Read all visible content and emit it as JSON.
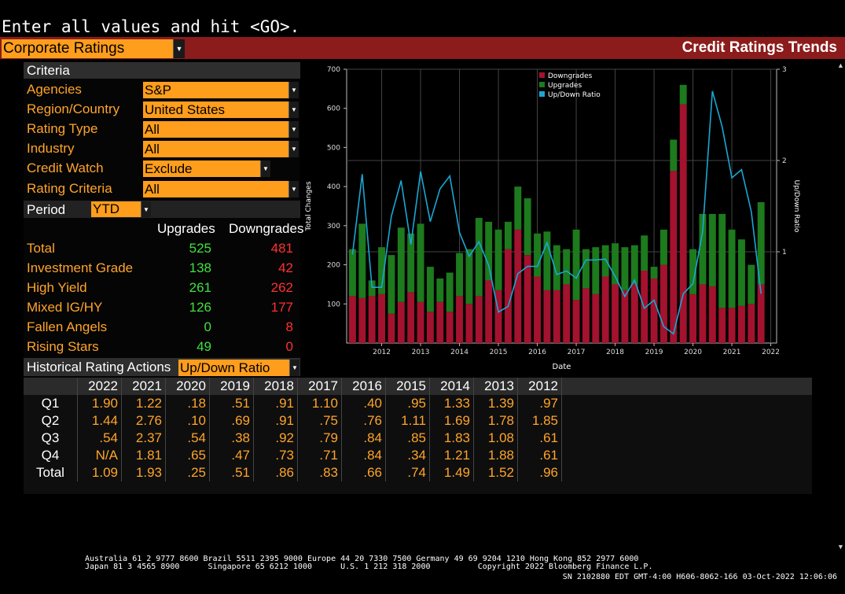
{
  "command_line": "Enter all values and hit <GO>.",
  "screen_selector": "Corporate Ratings",
  "screen_title": "Credit Ratings Trends",
  "criteria": {
    "header": "Criteria",
    "rows": [
      {
        "label": "Agencies",
        "value": "S&P"
      },
      {
        "label": "Region/Country",
        "value": "United States"
      },
      {
        "label": "Rating Type",
        "value": "All"
      },
      {
        "label": "Industry",
        "value": "All"
      },
      {
        "label": "Credit Watch",
        "value": "Exclude"
      },
      {
        "label": "Rating Criteria",
        "value": "All"
      }
    ],
    "period_label": "Period",
    "period_value": "YTD"
  },
  "summary": {
    "col_upgrades": "Upgrades",
    "col_downgrades": "Downgrades",
    "rows": [
      {
        "label": "Total",
        "up": "525",
        "down": "481"
      },
      {
        "label": "Investment Grade",
        "up": "138",
        "down": "42"
      },
      {
        "label": "High Yield",
        "up": "261",
        "down": "262"
      },
      {
        "label": "Mixed IG/HY",
        "up": "126",
        "down": "177"
      },
      {
        "label": "Fallen Angels",
        "up": "0",
        "down": "8"
      },
      {
        "label": "Rising Stars",
        "up": "49",
        "down": "0"
      }
    ]
  },
  "historical": {
    "label": "Historical Rating Actions",
    "selector": "Up/Down Ratio",
    "years": [
      "2022",
      "2021",
      "2020",
      "2019",
      "2018",
      "2017",
      "2016",
      "2015",
      "2014",
      "2013",
      "2012"
    ],
    "rows": [
      {
        "label": "Q1",
        "values": [
          "1.90",
          "1.22",
          ".18",
          ".51",
          ".91",
          "1.10",
          ".40",
          ".95",
          "1.33",
          "1.39",
          ".97"
        ]
      },
      {
        "label": "Q2",
        "values": [
          "1.44",
          "2.76",
          ".10",
          ".69",
          ".91",
          ".75",
          ".76",
          "1.11",
          "1.69",
          "1.78",
          "1.85"
        ]
      },
      {
        "label": "Q3",
        "values": [
          ".54",
          "2.37",
          ".54",
          ".38",
          ".92",
          ".79",
          ".84",
          ".85",
          "1.83",
          "1.08",
          ".61"
        ]
      },
      {
        "label": "Q4",
        "values": [
          "N/A",
          "1.81",
          ".65",
          ".47",
          ".73",
          ".71",
          ".84",
          ".34",
          "1.21",
          "1.88",
          ".61"
        ]
      },
      {
        "label": "Total",
        "values": [
          "1.09",
          "1.93",
          ".25",
          ".51",
          ".86",
          ".83",
          ".66",
          ".74",
          "1.49",
          "1.52",
          ".96"
        ]
      }
    ]
  },
  "chart_data": {
    "type": "bar",
    "xlabel": "Date",
    "ylabel": "Total Changes",
    "y2label": "Up/Down Ratio",
    "ylim": [
      0,
      700
    ],
    "y2lim": [
      0,
      3
    ],
    "yticks": [
      100,
      200,
      300,
      400,
      500,
      600,
      700
    ],
    "y2ticks": [
      1,
      2,
      3
    ],
    "xticks": [
      "2012",
      "2013",
      "2014",
      "2015",
      "2016",
      "2017",
      "2018",
      "2019",
      "2020",
      "2021",
      "2022"
    ],
    "xlim": [
      2011.1,
      2022.15
    ],
    "legend_position": "top-center",
    "grid": true,
    "series": [
      {
        "name": "Downgrades",
        "color": "#a3122e",
        "x": [
          2011.25,
          2011.5,
          2011.75,
          2012.0,
          2012.25,
          2012.5,
          2012.75,
          2013.0,
          2013.25,
          2013.5,
          2013.75,
          2014.0,
          2014.25,
          2014.5,
          2014.75,
          2015.0,
          2015.25,
          2015.5,
          2015.75,
          2016.0,
          2016.25,
          2016.5,
          2016.75,
          2017.0,
          2017.25,
          2017.5,
          2017.75,
          2018.0,
          2018.25,
          2018.5,
          2018.75,
          2019.0,
          2019.25,
          2019.5,
          2019.75,
          2020.0,
          2020.25,
          2020.5,
          2020.75,
          2021.0,
          2021.25,
          2021.5,
          2021.75
        ],
        "values": [
          120,
          115,
          120,
          125,
          75,
          105,
          130,
          105,
          80,
          105,
          80,
          120,
          100,
          120,
          160,
          135,
          240,
          290,
          225,
          170,
          135,
          135,
          150,
          110,
          140,
          125,
          170,
          150,
          135,
          150,
          185,
          165,
          200,
          440,
          610,
          125,
          150,
          145,
          90,
          90,
          95,
          100,
          150
        ]
      },
      {
        "name": "Upgrades",
        "color": "#1d7a1d",
        "x": [
          2011.25,
          2011.5,
          2011.75,
          2012.0,
          2012.25,
          2012.5,
          2012.75,
          2013.0,
          2013.25,
          2013.5,
          2013.75,
          2014.0,
          2014.25,
          2014.5,
          2014.75,
          2015.0,
          2015.25,
          2015.5,
          2015.75,
          2016.0,
          2016.25,
          2016.5,
          2016.75,
          2017.0,
          2017.25,
          2017.5,
          2017.75,
          2018.0,
          2018.25,
          2018.5,
          2018.75,
          2019.0,
          2019.25,
          2019.5,
          2019.75,
          2020.0,
          2020.25,
          2020.5,
          2020.75,
          2021.0,
          2021.25,
          2021.5,
          2021.75
        ],
        "values": [
          120,
          190,
          40,
          120,
          150,
          190,
          150,
          200,
          115,
          60,
          100,
          110,
          140,
          200,
          150,
          155,
          70,
          110,
          145,
          110,
          150,
          115,
          90,
          180,
          100,
          120,
          80,
          105,
          110,
          100,
          90,
          30,
          90,
          80,
          50,
          115,
          180,
          185,
          240,
          200,
          170,
          100,
          210
        ]
      },
      {
        "name": "Up/Down Ratio",
        "color": "#1aa7d4",
        "axis": "right",
        "x": [
          2011.25,
          2011.5,
          2011.75,
          2012.0,
          2012.25,
          2012.5,
          2012.75,
          2013.0,
          2013.25,
          2013.5,
          2013.75,
          2014.0,
          2014.25,
          2014.5,
          2014.75,
          2015.0,
          2015.25,
          2015.5,
          2015.75,
          2016.0,
          2016.25,
          2016.5,
          2016.75,
          2017.0,
          2017.25,
          2017.5,
          2017.75,
          2018.0,
          2018.25,
          2018.5,
          2018.75,
          2019.0,
          2019.25,
          2019.5,
          2019.75,
          2020.0,
          2020.25,
          2020.5,
          2020.75,
          2021.0,
          2021.25,
          2021.5,
          2021.75
        ],
        "values": [
          0.97,
          1.85,
          0.61,
          0.61,
          1.39,
          1.78,
          1.08,
          1.88,
          1.33,
          1.69,
          1.83,
          1.21,
          0.95,
          1.11,
          0.85,
          0.34,
          0.4,
          0.76,
          0.84,
          0.84,
          1.1,
          0.75,
          0.79,
          0.71,
          0.91,
          0.91,
          0.92,
          0.73,
          0.51,
          0.69,
          0.38,
          0.47,
          0.18,
          0.1,
          0.54,
          0.65,
          1.22,
          2.76,
          2.37,
          1.81,
          1.9,
          1.44,
          0.54
        ]
      }
    ]
  },
  "footer": {
    "line1": "Australia 61 2 9777 8600 Brazil 5511 2395 9000 Europe 44 20 7330 7500 Germany 49 69 9204 1210 Hong Kong 852 2977 6000",
    "line2": "Japan 81 3 4565 8900      Singapore 65 6212 1000      U.S. 1 212 318 2000          Copyright 2022 Bloomberg Finance L.P.",
    "line3": "SN 2102880 EDT  GMT-4:00 H606-8062-166 03-Oct-2022 12:06:06"
  }
}
